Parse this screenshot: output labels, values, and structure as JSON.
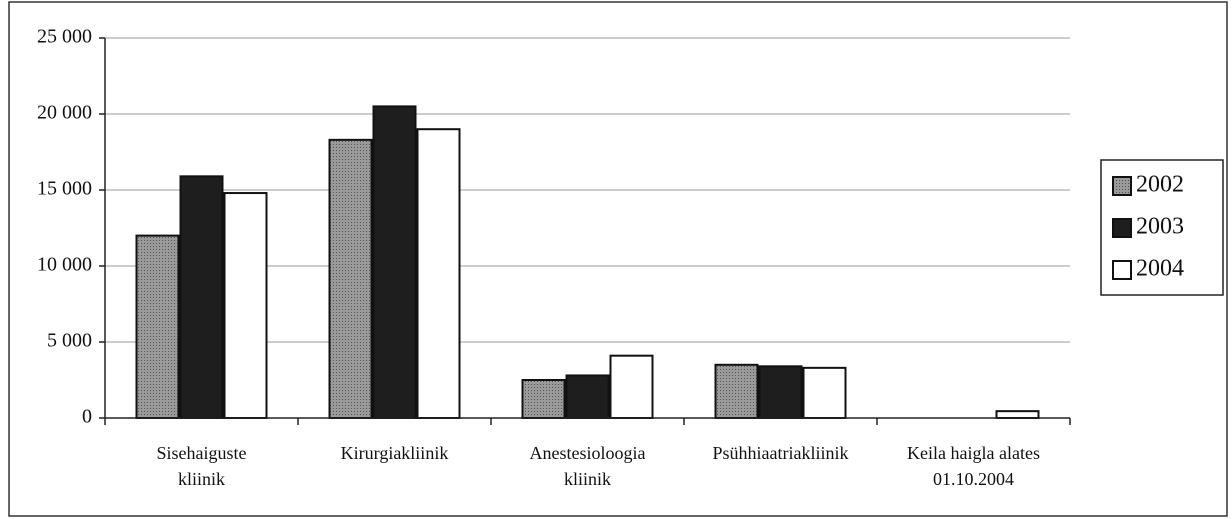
{
  "chart_data": {
    "type": "bar",
    "categories": [
      "Sisehaiguste\nkliinik",
      "Kirurgiakliinik",
      "Anestesioloogia\nkliinik",
      "Psühhiaatriakliinik",
      "Keila haigla alates\n01.10.2004"
    ],
    "series": [
      {
        "name": "2002",
        "color": "#8a8a8a",
        "values": [
          12000,
          18300,
          2500,
          3500,
          0
        ]
      },
      {
        "name": "2003",
        "color": "#1e1e1e",
        "values": [
          15900,
          20500,
          2800,
          3400,
          0
        ]
      },
      {
        "name": "2004",
        "color": "#ffffff",
        "values": [
          14800,
          19000,
          4100,
          3300,
          450
        ]
      }
    ],
    "ylim": [
      0,
      25000
    ],
    "yticks": [
      0,
      {
        "value": 5000,
        "label": "5 000"
      },
      {
        "value": 10000,
        "label": "10 000"
      },
      {
        "value": 15000,
        "label": "15 000"
      },
      {
        "value": 20000,
        "label": "20 000"
      },
      {
        "value": 25000,
        "label": "25 000"
      }
    ],
    "grid": true,
    "legend": "right"
  }
}
